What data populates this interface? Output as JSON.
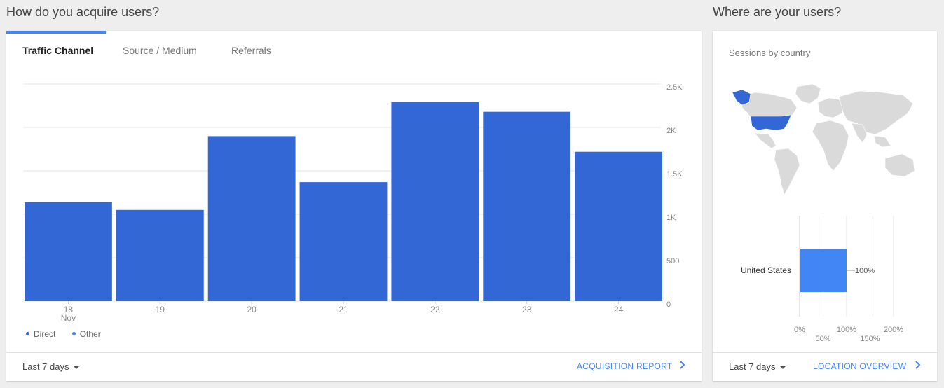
{
  "acquisition": {
    "section_title": "How do you acquire users?",
    "tabs": [
      {
        "label": "Traffic Channel",
        "active": true
      },
      {
        "label": "Source / Medium",
        "active": false
      },
      {
        "label": "Referrals",
        "active": false
      }
    ],
    "date_range": "Last 7 days",
    "report_link": "ACQUISITION REPORT",
    "legend": [
      {
        "name": "Direct",
        "color": "#3367d6"
      },
      {
        "name": "Other",
        "color": "#4285f4"
      }
    ]
  },
  "location": {
    "section_title": "Where are your users?",
    "subtitle": "Sessions by country",
    "date_range": "Last 7 days",
    "report_link": "LOCATION OVERVIEW",
    "highlight_color": "#3367d6",
    "map_base_color": "#dadada"
  },
  "chart_data": [
    {
      "type": "bar",
      "categories": [
        "18",
        "19",
        "20",
        "21",
        "22",
        "23",
        "24"
      ],
      "category_sublabels": [
        "Nov",
        "",
        "",
        "",
        "",
        "",
        ""
      ],
      "series": [
        {
          "name": "Direct",
          "values": [
            1140,
            1050,
            1900,
            1370,
            2290,
            2180,
            1720
          ],
          "color": "#3367d6"
        }
      ],
      "y_ticks": [
        "2.5K",
        "2K",
        "1.5K",
        "1K",
        "500",
        "0"
      ],
      "ylim": [
        0,
        2500
      ],
      "legend_position": "bottom-left",
      "grid": true
    },
    {
      "type": "bar",
      "orientation": "horizontal",
      "categories": [
        "United States"
      ],
      "values": [
        100
      ],
      "value_labels": [
        "100%"
      ],
      "x_ticks": [
        "0%",
        "50%",
        "100%",
        "150%",
        "200%"
      ],
      "xlim": [
        0,
        200
      ],
      "color": "#4285f4"
    }
  ]
}
